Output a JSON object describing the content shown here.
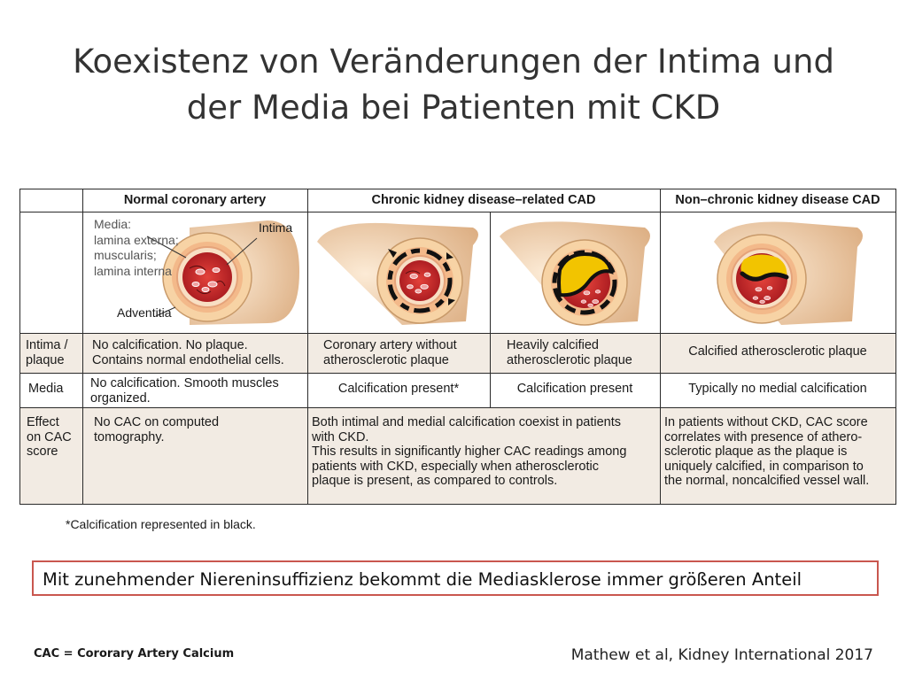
{
  "title": {
    "line1": "Koexistenz von Veränderungen der Intima und",
    "line2": "der Media bei Patienten mit CKD"
  },
  "table": {
    "headers": {
      "normal": "Normal coronary artery",
      "ckd": "Chronic kidney disease–related CAD",
      "non_ckd": "Non–chronic kidney disease CAD"
    },
    "image_labels": {
      "media": [
        "Media:",
        "lamina externa;",
        "muscularis;",
        "lamina interna"
      ],
      "intima": "Intima",
      "adventitia": "Adventitia"
    },
    "rows": {
      "intima": {
        "label": [
          "Intima /",
          "plaque"
        ],
        "normal": [
          "No calcification. No plaque.",
          "Contains normal endothelial cells."
        ],
        "ckd_a": [
          "Coronary artery without",
          "atherosclerotic plaque"
        ],
        "ckd_b": [
          "Heavily calcified",
          "atherosclerotic plaque"
        ],
        "non_ckd": "Calcified atherosclerotic plaque"
      },
      "media": {
        "label": "Media",
        "normal": [
          "No calcification. Smooth muscles",
          "organized."
        ],
        "ckd_a": "Calcification present*",
        "ckd_b": "Calcification present",
        "non_ckd": "Typically no medial calcification"
      },
      "effect": {
        "label": [
          "Effect",
          "on CAC",
          "score"
        ],
        "normal": [
          "No CAC on computed",
          "tomography."
        ],
        "ckd": [
          "Both intimal and medial calcification coexist in patients",
          "with CKD.",
          "This results in significantly higher CAC readings among",
          "patients with CKD, especially when atherosclerotic",
          "plaque is present, as compared to controls."
        ],
        "non_ckd": [
          "In patients without CKD, CAC score",
          "correlates with presence of athero-",
          "sclerotic plaque as the plaque is",
          "uniquely calcified, in comparison to",
          "the normal, noncalcified vessel wall."
        ]
      }
    }
  },
  "footnote": "*Calcification represented in black.",
  "callout": "Mit zunehmender Niereninsuffizienz bekommt die Mediasklerose immer größeren Anteil",
  "abbreviation": "CAC = Cororary Artery Calcium",
  "source": "Mathew et al, Kidney International 2017",
  "colors": {
    "table_fill": "#f2ebe3",
    "callout_border": "#c9574f",
    "adventitia": "#f7d3a5",
    "lumen_blood": "#c92027",
    "plaque_yellow": "#f2c400",
    "calcification": "#111111"
  }
}
